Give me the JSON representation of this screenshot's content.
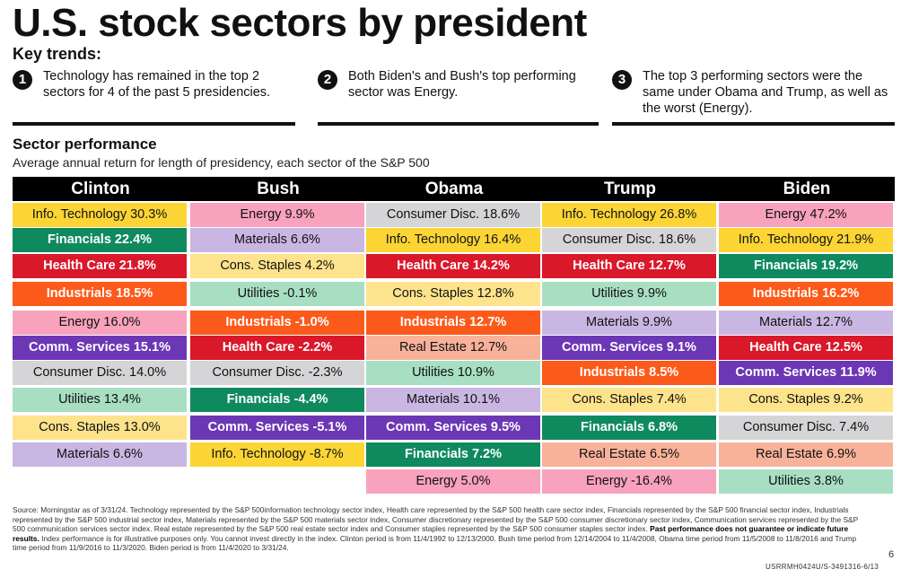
{
  "title": "U.S. stock sectors by president",
  "key_trends": {
    "heading": "Key trends:",
    "items": [
      {
        "num": "1",
        "text": "Technology has remained in the top 2 sectors for 4 of the past 5 presidencies."
      },
      {
        "num": "2",
        "text": "Both Biden's and Bush's top performing sector was Energy."
      },
      {
        "num": "3",
        "text": "The top 3 performing sectors were the same under Obama and Trump, as well as the worst (Energy)."
      }
    ]
  },
  "section_title": "Sector performance",
  "section_subtitle": "Average annual return for length of presidency, each sector of the S&P 500",
  "colors": {
    "Info. Technology": "#fcd535",
    "Financials": "#0f8a5f",
    "Health Care": "#d9182a",
    "Industrials": "#fc5a1a",
    "Energy": "#f8a2bd",
    "Comm. Services": "#6c37b5",
    "Consumer Disc.": "#d5d5d7",
    "Utilities": "#a8dfc2",
    "Cons. Staples": "#fde38b",
    "Materials": "#c9b6e2",
    "Real Estate": "#f8b29a"
  },
  "dark_text_sectors": [
    "Financials",
    "Health Care",
    "Industrials",
    "Comm. Services"
  ],
  "chart_data": {
    "type": "table",
    "title": "Sector performance",
    "subtitle": "Average annual return for length of presidency, each sector of the S&P 500",
    "columns": [
      {
        "president": "Clinton",
        "rows": [
          {
            "sector": "Info. Technology",
            "value": 30.3,
            "label": "Info. Technology 30.3%"
          },
          {
            "sector": "Financials",
            "value": 22.4,
            "label": "Financials 22.4%"
          },
          {
            "sector": "Health Care",
            "value": 21.8,
            "label": "Health Care 21.8%"
          },
          {
            "sector": "Industrials",
            "value": 18.5,
            "label": "Industrials 18.5%"
          },
          {
            "sector": "Energy",
            "value": 16.0,
            "label": "Energy 16.0%"
          },
          {
            "sector": "Comm. Services",
            "value": 15.1,
            "label": "Comm. Services 15.1%"
          },
          {
            "sector": "Consumer Disc.",
            "value": 14.0,
            "label": "Consumer Disc. 14.0%"
          },
          {
            "sector": "Utilities",
            "value": 13.4,
            "label": "Utilities 13.4%"
          },
          {
            "sector": "Cons. Staples",
            "value": 13.0,
            "label": "Cons. Staples 13.0%"
          },
          {
            "sector": "Materials",
            "value": 6.6,
            "label": "Materials 6.6%"
          }
        ]
      },
      {
        "president": "Bush",
        "rows": [
          {
            "sector": "Energy",
            "value": 9.9,
            "label": "Energy 9.9%"
          },
          {
            "sector": "Materials",
            "value": 6.6,
            "label": "Materials 6.6%"
          },
          {
            "sector": "Cons. Staples",
            "value": 4.2,
            "label": "Cons. Staples 4.2%"
          },
          {
            "sector": "Utilities",
            "value": -0.1,
            "label": "Utilities -0.1%"
          },
          {
            "sector": "Industrials",
            "value": -1.0,
            "label": "Industrials -1.0%"
          },
          {
            "sector": "Health Care",
            "value": -2.2,
            "label": "Health Care -2.2%"
          },
          {
            "sector": "Consumer Disc.",
            "value": -2.3,
            "label": "Consumer Disc. -2.3%"
          },
          {
            "sector": "Financials",
            "value": -4.4,
            "label": "Financials -4.4%"
          },
          {
            "sector": "Comm. Services",
            "value": -5.1,
            "label": "Comm. Services -5.1%"
          },
          {
            "sector": "Info. Technology",
            "value": -8.7,
            "label": "Info. Technology -8.7%"
          }
        ]
      },
      {
        "president": "Obama",
        "rows": [
          {
            "sector": "Consumer Disc.",
            "value": 18.6,
            "label": "Consumer Disc. 18.6%"
          },
          {
            "sector": "Info. Technology",
            "value": 16.4,
            "label": "Info. Technology 16.4%"
          },
          {
            "sector": "Health Care",
            "value": 14.2,
            "label": "Health Care 14.2%"
          },
          {
            "sector": "Cons. Staples",
            "value": 12.8,
            "label": "Cons. Staples 12.8%"
          },
          {
            "sector": "Industrials",
            "value": 12.7,
            "label": "Industrials 12.7%"
          },
          {
            "sector": "Real Estate",
            "value": 12.7,
            "label": "Real Estate 12.7%"
          },
          {
            "sector": "Utilities",
            "value": 10.9,
            "label": "Utilities 10.9%"
          },
          {
            "sector": "Materials",
            "value": 10.1,
            "label": "Materials 10.1%"
          },
          {
            "sector": "Comm. Services",
            "value": 9.5,
            "label": "Comm. Services 9.5%"
          },
          {
            "sector": "Financials",
            "value": 7.2,
            "label": "Financials 7.2%"
          },
          {
            "sector": "Energy",
            "value": 5.0,
            "label": "Energy 5.0%"
          }
        ]
      },
      {
        "president": "Trump",
        "rows": [
          {
            "sector": "Info. Technology",
            "value": 26.8,
            "label": "Info. Technology 26.8%"
          },
          {
            "sector": "Consumer Disc.",
            "value": 18.6,
            "label": "Consumer Disc. 18.6%"
          },
          {
            "sector": "Health Care",
            "value": 12.7,
            "label": "Health Care 12.7%"
          },
          {
            "sector": "Utilities",
            "value": 9.9,
            "label": "Utilities 9.9%"
          },
          {
            "sector": "Materials",
            "value": 9.9,
            "label": "Materials 9.9%"
          },
          {
            "sector": "Comm. Services",
            "value": 9.1,
            "label": "Comm. Services 9.1%"
          },
          {
            "sector": "Industrials",
            "value": 8.5,
            "label": "Industrials 8.5%"
          },
          {
            "sector": "Cons. Staples",
            "value": 7.4,
            "label": "Cons. Staples 7.4%"
          },
          {
            "sector": "Financials",
            "value": 6.8,
            "label": "Financials 6.8%"
          },
          {
            "sector": "Real Estate",
            "value": 6.5,
            "label": "Real Estate 6.5%"
          },
          {
            "sector": "Energy",
            "value": -16.4,
            "label": "Energy -16.4%"
          }
        ]
      },
      {
        "president": "Biden",
        "rows": [
          {
            "sector": "Energy",
            "value": 47.2,
            "label": "Energy 47.2%"
          },
          {
            "sector": "Info. Technology",
            "value": 21.9,
            "label": "Info. Technology 21.9%"
          },
          {
            "sector": "Financials",
            "value": 19.2,
            "label": "Financials 19.2%"
          },
          {
            "sector": "Industrials",
            "value": 16.2,
            "label": "Industrials 16.2%"
          },
          {
            "sector": "Materials",
            "value": 12.7,
            "label": "Materials 12.7%"
          },
          {
            "sector": "Health Care",
            "value": 12.5,
            "label": "Health Care 12.5%"
          },
          {
            "sector": "Comm. Services",
            "value": 11.9,
            "label": "Comm. Services 11.9%"
          },
          {
            "sector": "Cons. Staples",
            "value": 9.2,
            "label": "Cons. Staples 9.2%"
          },
          {
            "sector": "Consumer Disc.",
            "value": 7.4,
            "label": "Consumer Disc. 7.4%"
          },
          {
            "sector": "Real Estate",
            "value": 6.9,
            "label": "Real Estate 6.9%"
          },
          {
            "sector": "Utilities",
            "value": 3.8,
            "label": "Utilities 3.8%"
          }
        ]
      }
    ]
  },
  "footnote": {
    "text": "Source: Morningstar as of 3/31/24. Technology represented by the S&P 500information technology sector index, Health care represented by the S&P 500 health care sector index, Financials represented by the S&P 500 financial sector index, Industrials represented by the S&P 500 industrial sector index, Materials represented by the S&P 500 materials sector index, Consumer discretionary represented by the S&P 500 consumer discretionary sector index, Communication services represented by the S&P 500 communication services sector index. Real estate represented by the S&P 500 real estate sector index and Consumer staples represented by the S&P 500 consumer staples sector index.",
    "bold": "Past performance does not guarantee or indicate future results.",
    "text2": "Index performance is for illustrative purposes only. You cannot invest directly in the index. Clinton period is from 11/4/1992 to 12/13/2000. Bush time period from 12/14/2004 to 11/4/2008, Obama time period from 11/5/2008 to 11/8/2016 and Trump time period from 11/9/2016 to 11/3/2020. Biden period is from 11/4/2020 to 3/31/24."
  },
  "page_number": "6",
  "doc_code": "USRRMH0424U/S-3491316-6/13"
}
